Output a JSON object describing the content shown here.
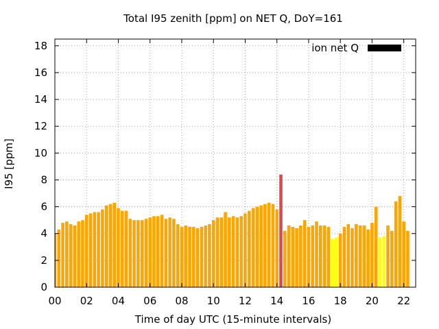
{
  "chart_data": {
    "type": "bar",
    "title": "Total I95 zenith [ppm] on NET Q, DoY=161",
    "xlabel": "Time of day UTC (15-minute intervals)",
    "ylabel": "I95 [ppm]",
    "xlim": [
      0,
      22.75
    ],
    "ylim": [
      0,
      18.5
    ],
    "x_ticks": [
      "00",
      "02",
      "04",
      "06",
      "08",
      "10",
      "12",
      "14",
      "16",
      "18",
      "20",
      "22"
    ],
    "y_ticks": [
      0,
      2,
      4,
      6,
      8,
      10,
      12,
      14,
      16,
      18
    ],
    "grid": true,
    "legend": {
      "position": "top-right",
      "label": "ion net Q",
      "color": "#000000"
    },
    "colors": {
      "normal": "#ffa500",
      "high": "#e0474c",
      "low": "#ffff00"
    },
    "bar_interval_hours": 0.25,
    "values": [
      4.0,
      4.3,
      4.8,
      4.9,
      4.7,
      4.6,
      4.9,
      5.0,
      5.4,
      5.5,
      5.6,
      5.6,
      5.8,
      6.1,
      6.2,
      6.3,
      5.9,
      5.7,
      5.7,
      5.1,
      5.0,
      5.0,
      5.0,
      5.1,
      5.2,
      5.3,
      5.3,
      5.4,
      5.1,
      5.2,
      5.1,
      4.7,
      4.5,
      4.6,
      4.5,
      4.5,
      4.4,
      4.5,
      4.6,
      4.7,
      5.0,
      5.2,
      5.2,
      5.6,
      5.2,
      5.3,
      5.2,
      5.3,
      5.5,
      5.7,
      5.9,
      6.0,
      6.1,
      6.2,
      6.3,
      6.2,
      5.8,
      8.4,
      4.2,
      4.6,
      4.5,
      4.4,
      4.6,
      5.0,
      4.5,
      4.6,
      4.9,
      4.6,
      4.6,
      4.5,
      3.6,
      3.7,
      4.0,
      4.5,
      4.7,
      4.4,
      4.7,
      4.6,
      4.6,
      4.3,
      4.8,
      6.0,
      3.7,
      3.8,
      4.6,
      4.2,
      6.4,
      6.8,
      4.9,
      4.2
    ],
    "bar_status": [
      "normal",
      "normal",
      "normal",
      "normal",
      "normal",
      "normal",
      "normal",
      "normal",
      "normal",
      "normal",
      "normal",
      "normal",
      "normal",
      "normal",
      "normal",
      "normal",
      "normal",
      "normal",
      "normal",
      "normal",
      "normal",
      "normal",
      "normal",
      "normal",
      "normal",
      "normal",
      "normal",
      "normal",
      "normal",
      "normal",
      "normal",
      "normal",
      "normal",
      "normal",
      "normal",
      "normal",
      "normal",
      "normal",
      "normal",
      "normal",
      "normal",
      "normal",
      "normal",
      "normal",
      "normal",
      "normal",
      "normal",
      "normal",
      "normal",
      "normal",
      "normal",
      "normal",
      "normal",
      "normal",
      "normal",
      "normal",
      "normal",
      "high",
      "normal",
      "normal",
      "normal",
      "normal",
      "normal",
      "normal",
      "normal",
      "normal",
      "normal",
      "normal",
      "normal",
      "normal",
      "low",
      "low",
      "normal",
      "normal",
      "normal",
      "normal",
      "normal",
      "normal",
      "normal",
      "normal",
      "normal",
      "normal",
      "low",
      "low",
      "normal",
      "normal",
      "normal",
      "normal",
      "normal",
      "normal"
    ]
  }
}
